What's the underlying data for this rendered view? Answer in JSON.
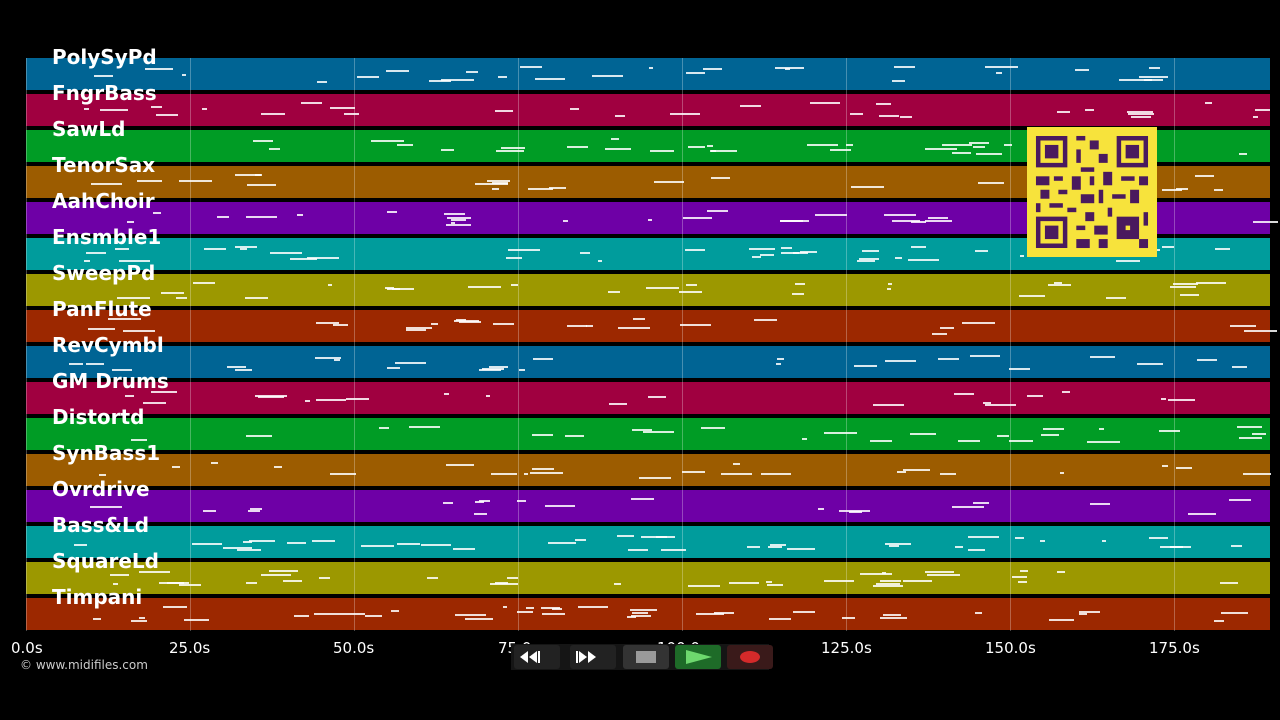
{
  "tracks": [
    {
      "name": "PolySyPd",
      "color": "#006494"
    },
    {
      "name": "FngrBass",
      "color": "#a00040"
    },
    {
      "name": "SawLd",
      "color": "#009c25"
    },
    {
      "name": "TenorSax",
      "color": "#9c5c00"
    },
    {
      "name": "AahChoir",
      "color": "#6e00a6"
    },
    {
      "name": "Ensmble1",
      "color": "#009c9c"
    },
    {
      "name": "SweepPd",
      "color": "#9c9800"
    },
    {
      "name": "PanFlute",
      "color": "#9c2800"
    },
    {
      "name": "RevCymbl",
      "color": "#006494"
    },
    {
      "name": "GM Drums",
      "color": "#a00040"
    },
    {
      "name": "Distortd",
      "color": "#009c25"
    },
    {
      "name": "SynBass1",
      "color": "#9c5c00"
    },
    {
      "name": "Ovrdrive",
      "color": "#6e00a6"
    },
    {
      "name": "Bass&Ld",
      "color": "#009c9c"
    },
    {
      "name": "SquareLd",
      "color": "#9c9800"
    },
    {
      "name": "Timpani",
      "color": "#9c2800"
    }
  ],
  "timeline": {
    "ticks": [
      "0.0s",
      "25.0s",
      "50.0s",
      "75.0s",
      "100.0s",
      "125.0s",
      "150.0s",
      "175.0s"
    ]
  },
  "copyright": "© www.midifiles.com",
  "transport": {
    "rewind_icon": "rewind-icon",
    "forward_icon": "fast-forward-icon",
    "stop_icon": "stop-icon",
    "play_icon": "play-icon",
    "record_icon": "record-icon"
  },
  "qr_icon": "qr-code"
}
